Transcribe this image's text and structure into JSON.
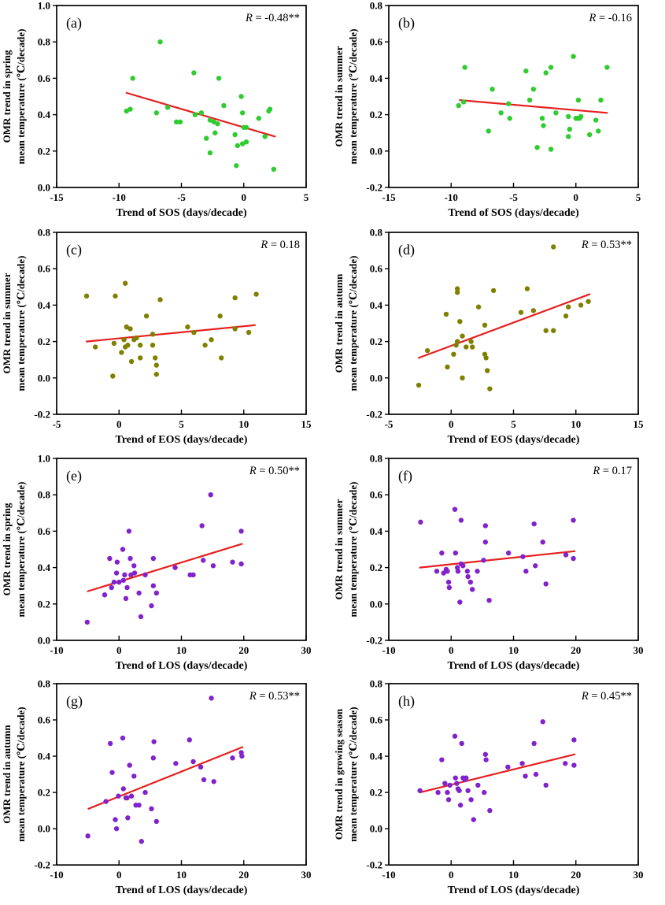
{
  "chart_data": [
    {
      "type": "scatter",
      "panel": "a",
      "r_label": "R = -0.48**",
      "xlabel": "Trend of SOS (days/decade)",
      "ylabel_line1": "OMR trend in spring",
      "ylabel_line2": "mean temperature (℃/decade)",
      "xlim": [
        -15,
        5
      ],
      "ylim": [
        0.0,
        1.0
      ],
      "xticks": [
        "-15",
        "-10",
        "-5",
        "0",
        "5"
      ],
      "yticks": [
        "0.0",
        "0.2",
        "0.4",
        "0.6",
        "0.8",
        "1.0"
      ],
      "point_color": "#2ecc2e",
      "line_color": "#e62020",
      "fit_line": {
        "x1": -9.4,
        "y1": 0.52,
        "x2": 2.5,
        "y2": 0.28
      },
      "points": [
        [
          -9.4,
          0.42
        ],
        [
          -9.1,
          0.43
        ],
        [
          -8.9,
          0.6
        ],
        [
          -7.0,
          0.41
        ],
        [
          -6.7,
          0.8
        ],
        [
          -6.1,
          0.44
        ],
        [
          -5.4,
          0.36
        ],
        [
          -5.1,
          0.36
        ],
        [
          -4.0,
          0.63
        ],
        [
          -3.9,
          0.4
        ],
        [
          -3.4,
          0.41
        ],
        [
          -3.0,
          0.27
        ],
        [
          -2.7,
          0.37
        ],
        [
          -2.7,
          0.19
        ],
        [
          -2.4,
          0.36
        ],
        [
          -2.3,
          0.3
        ],
        [
          -2.1,
          0.35
        ],
        [
          -2.0,
          0.6
        ],
        [
          -1.6,
          0.45
        ],
        [
          -0.7,
          0.29
        ],
        [
          -0.6,
          0.12
        ],
        [
          -0.5,
          0.23
        ],
        [
          -0.2,
          0.5
        ],
        [
          -0.1,
          0.41
        ],
        [
          -0.1,
          0.24
        ],
        [
          0.0,
          0.33
        ],
        [
          0.2,
          0.33
        ],
        [
          0.2,
          0.25
        ],
        [
          1.2,
          0.38
        ],
        [
          1.7,
          0.28
        ],
        [
          2.0,
          0.42
        ],
        [
          2.1,
          0.43
        ],
        [
          2.4,
          0.1
        ]
      ]
    },
    {
      "type": "scatter",
      "panel": "b",
      "r_label": "R = -0.16",
      "xlabel": "Trend of SOS (days/decade)",
      "ylabel_line1": "OMR trend in summer",
      "ylabel_line2": "mean temperature (℃/decade)",
      "xlim": [
        -15,
        5
      ],
      "ylim": [
        -0.2,
        0.8
      ],
      "xticks": [
        "-15",
        "-10",
        "-5",
        "0",
        "5"
      ],
      "yticks": [
        "-0.2",
        "0.0",
        "0.2",
        "0.4",
        "0.6",
        "0.8"
      ],
      "point_color": "#2ecc2e",
      "line_color": "#e62020",
      "fit_line": {
        "x1": -9.3,
        "y1": 0.28,
        "x2": 2.5,
        "y2": 0.21
      },
      "points": [
        [
          -9.4,
          0.25
        ],
        [
          -9.0,
          0.27
        ],
        [
          -8.9,
          0.46
        ],
        [
          -7.0,
          0.11
        ],
        [
          -6.7,
          0.34
        ],
        [
          -6.0,
          0.21
        ],
        [
          -5.4,
          0.26
        ],
        [
          -5.3,
          0.18
        ],
        [
          -4.0,
          0.44
        ],
        [
          -3.7,
          0.28
        ],
        [
          -3.4,
          0.34
        ],
        [
          -3.1,
          0.02
        ],
        [
          -2.7,
          0.18
        ],
        [
          -2.6,
          0.14
        ],
        [
          -2.4,
          0.43
        ],
        [
          -2.0,
          0.46
        ],
        [
          -2.0,
          0.01
        ],
        [
          -1.6,
          0.21
        ],
        [
          -0.6,
          0.19
        ],
        [
          -0.6,
          0.08
        ],
        [
          -0.5,
          0.12
        ],
        [
          -0.2,
          0.52
        ],
        [
          0.0,
          0.18
        ],
        [
          0.1,
          0.18
        ],
        [
          0.2,
          0.28
        ],
        [
          0.3,
          0.18
        ],
        [
          0.4,
          0.19
        ],
        [
          1.1,
          0.09
        ],
        [
          1.6,
          0.17
        ],
        [
          1.8,
          0.11
        ],
        [
          2.0,
          0.28
        ],
        [
          2.5,
          0.46
        ]
      ]
    },
    {
      "type": "scatter",
      "panel": "c",
      "r_label": "R = 0.18",
      "xlabel": "Trend of EOS (days/decade)",
      "ylabel_line1": "OMR trend in summer",
      "ylabel_line2": "mean temperature (℃/decade)",
      "xlim": [
        -5,
        15
      ],
      "ylim": [
        -0.2,
        0.8
      ],
      "xticks": [
        "-5",
        "0",
        "5",
        "10",
        "15"
      ],
      "yticks": [
        "-0.2",
        "0.0",
        "0.2",
        "0.4",
        "0.6",
        "0.8"
      ],
      "point_color": "#808000",
      "line_color": "#e62020",
      "fit_line": {
        "x1": -2.6,
        "y1": 0.2,
        "x2": 10.9,
        "y2": 0.29
      },
      "points": [
        [
          -2.6,
          0.45
        ],
        [
          -1.9,
          0.17
        ],
        [
          -0.5,
          0.01
        ],
        [
          -0.4,
          0.19
        ],
        [
          -0.3,
          0.45
        ],
        [
          0.2,
          0.14
        ],
        [
          0.4,
          0.21
        ],
        [
          0.5,
          0.52
        ],
        [
          0.5,
          0.17
        ],
        [
          0.6,
          0.28
        ],
        [
          0.7,
          0.18
        ],
        [
          0.9,
          0.27
        ],
        [
          1.0,
          0.09
        ],
        [
          1.2,
          0.21
        ],
        [
          1.4,
          0.22
        ],
        [
          1.7,
          0.11
        ],
        [
          1.7,
          0.18
        ],
        [
          2.2,
          0.34
        ],
        [
          2.7,
          0.18
        ],
        [
          2.7,
          0.24
        ],
        [
          2.9,
          0.11
        ],
        [
          3.0,
          0.07
        ],
        [
          3.0,
          0.02
        ],
        [
          3.3,
          0.43
        ],
        [
          5.5,
          0.28
        ],
        [
          6.0,
          0.25
        ],
        [
          6.9,
          0.18
        ],
        [
          7.4,
          0.21
        ],
        [
          8.1,
          0.34
        ],
        [
          8.2,
          0.11
        ],
        [
          9.3,
          0.44
        ],
        [
          9.3,
          0.27
        ],
        [
          10.4,
          0.25
        ],
        [
          11.0,
          0.46
        ]
      ]
    },
    {
      "type": "scatter",
      "panel": "d",
      "r_label": "R = 0.53**",
      "xlabel": "Trend of EOS (days/decade)",
      "ylabel_line1": "OMR trend in autumn",
      "ylabel_line2": "mean temperature (℃/decade)",
      "xlim": [
        -5,
        15
      ],
      "ylim": [
        -0.2,
        0.8
      ],
      "xticks": [
        "-5",
        "0",
        "5",
        "10",
        "15"
      ],
      "yticks": [
        "-0.2",
        "0.0",
        "0.2",
        "0.4",
        "0.6",
        "0.8"
      ],
      "point_color": "#808000",
      "line_color": "#e62020",
      "fit_line": {
        "x1": -2.6,
        "y1": 0.11,
        "x2": 11.1,
        "y2": 0.46
      },
      "points": [
        [
          -2.6,
          -0.04
        ],
        [
          -1.9,
          0.15
        ],
        [
          -0.4,
          0.35
        ],
        [
          -0.3,
          0.06
        ],
        [
          0.2,
          0.13
        ],
        [
          0.4,
          0.18
        ],
        [
          0.5,
          0.49
        ],
        [
          0.5,
          0.47
        ],
        [
          0.5,
          0.2
        ],
        [
          0.7,
          0.31
        ],
        [
          0.9,
          0.23
        ],
        [
          0.9,
          0.0
        ],
        [
          1.2,
          0.17
        ],
        [
          1.6,
          0.2
        ],
        [
          1.7,
          0.17
        ],
        [
          2.2,
          0.39
        ],
        [
          2.7,
          0.29
        ],
        [
          2.7,
          0.13
        ],
        [
          2.8,
          0.11
        ],
        [
          2.9,
          0.04
        ],
        [
          3.1,
          -0.06
        ],
        [
          3.4,
          0.48
        ],
        [
          5.6,
          0.36
        ],
        [
          6.1,
          0.49
        ],
        [
          6.6,
          0.37
        ],
        [
          7.6,
          0.26
        ],
        [
          8.2,
          0.72
        ],
        [
          8.2,
          0.26
        ],
        [
          9.2,
          0.34
        ],
        [
          9.4,
          0.39
        ],
        [
          10.4,
          0.4
        ],
        [
          11.0,
          0.42
        ]
      ]
    },
    {
      "type": "scatter",
      "panel": "e",
      "r_label": "R = 0.50**",
      "xlabel": "Trend of LOS (days/decade)",
      "ylabel_line1": "OMR trend in spring",
      "ylabel_line2": "mean temperature (℃/decade)",
      "xlim": [
        -10,
        30
      ],
      "ylim": [
        0.0,
        1.0
      ],
      "xticks": [
        "-10",
        "0",
        "10",
        "20",
        "30"
      ],
      "yticks": [
        "0.0",
        "0.2",
        "0.4",
        "0.6",
        "0.8",
        "1.0"
      ],
      "point_color": "#8222cc",
      "line_color": "#e62020",
      "fit_line": {
        "x1": -5.0,
        "y1": 0.27,
        "x2": 19.7,
        "y2": 0.53
      },
      "points": [
        [
          -5.1,
          0.1
        ],
        [
          -2.3,
          0.25
        ],
        [
          -1.5,
          0.45
        ],
        [
          -1.2,
          0.29
        ],
        [
          -0.8,
          0.32
        ],
        [
          -0.4,
          0.37
        ],
        [
          -0.3,
          0.43
        ],
        [
          0.0,
          0.32
        ],
        [
          0.6,
          0.5
        ],
        [
          0.7,
          0.33
        ],
        [
          0.9,
          0.36
        ],
        [
          1.1,
          0.23
        ],
        [
          1.3,
          0.29
        ],
        [
          1.6,
          0.6
        ],
        [
          1.8,
          0.45
        ],
        [
          1.9,
          0.36
        ],
        [
          2.4,
          0.41
        ],
        [
          2.5,
          0.37
        ],
        [
          3.2,
          0.26
        ],
        [
          3.5,
          0.13
        ],
        [
          4.2,
          0.36
        ],
        [
          5.2,
          0.19
        ],
        [
          5.5,
          0.3
        ],
        [
          5.5,
          0.45
        ],
        [
          6.0,
          0.26
        ],
        [
          9.0,
          0.4
        ],
        [
          11.4,
          0.36
        ],
        [
          11.9,
          0.36
        ],
        [
          13.3,
          0.63
        ],
        [
          13.5,
          0.44
        ],
        [
          14.7,
          0.8
        ],
        [
          15.1,
          0.41
        ],
        [
          18.2,
          0.43
        ],
        [
          19.6,
          0.6
        ],
        [
          19.6,
          0.42
        ]
      ]
    },
    {
      "type": "scatter",
      "panel": "f",
      "r_label": "R = 0.17",
      "xlabel": "Trend of LOS (days/decade)",
      "ylabel_line1": "OMR trend in summer",
      "ylabel_line2": "mean temperature (℃/decade)",
      "xlim": [
        -10,
        30
      ],
      "ylim": [
        -0.2,
        0.8
      ],
      "xticks": [
        "-10",
        "0",
        "10",
        "20",
        "30"
      ],
      "yticks": [
        "-0.2",
        "0.0",
        "0.2",
        "0.4",
        "0.6",
        "0.8"
      ],
      "point_color": "#8222cc",
      "line_color": "#e62020",
      "fit_line": {
        "x1": -5.0,
        "y1": 0.2,
        "x2": 19.8,
        "y2": 0.29
      },
      "points": [
        [
          -4.9,
          0.45
        ],
        [
          -2.3,
          0.18
        ],
        [
          -1.5,
          0.28
        ],
        [
          -1.2,
          0.17
        ],
        [
          -0.8,
          0.19
        ],
        [
          -0.6,
          0.18
        ],
        [
          -0.4,
          0.12
        ],
        [
          -0.3,
          0.09
        ],
        [
          0.6,
          0.52
        ],
        [
          0.7,
          0.28
        ],
        [
          1.0,
          0.2
        ],
        [
          1.1,
          0.18
        ],
        [
          1.4,
          0.01
        ],
        [
          1.6,
          0.46
        ],
        [
          1.6,
          0.22
        ],
        [
          1.9,
          0.21
        ],
        [
          2.6,
          0.18
        ],
        [
          2.7,
          0.15
        ],
        [
          3.1,
          0.12
        ],
        [
          3.4,
          0.08
        ],
        [
          4.2,
          0.18
        ],
        [
          5.2,
          0.24
        ],
        [
          5.5,
          0.43
        ],
        [
          5.5,
          0.34
        ],
        [
          6.1,
          0.02
        ],
        [
          9.2,
          0.28
        ],
        [
          11.5,
          0.26
        ],
        [
          12.0,
          0.18
        ],
        [
          13.3,
          0.44
        ],
        [
          13.5,
          0.21
        ],
        [
          14.7,
          0.34
        ],
        [
          15.2,
          0.11
        ],
        [
          18.4,
          0.27
        ],
        [
          19.6,
          0.46
        ],
        [
          19.6,
          0.25
        ]
      ]
    },
    {
      "type": "scatter",
      "panel": "g",
      "r_label": "R = 0.53**",
      "xlabel": "Trend of LOS (days/decade)",
      "ylabel_line1": "OMR trend in autumn",
      "ylabel_line2": "mean temperature (℃/decade)",
      "xlim": [
        -10,
        30
      ],
      "ylim": [
        -0.2,
        0.8
      ],
      "xticks": [
        "-10",
        "0",
        "10",
        "20",
        "30"
      ],
      "yticks": [
        "-0.2",
        "0.0",
        "0.2",
        "0.4",
        "0.6",
        "0.8"
      ],
      "point_color": "#8222cc",
      "line_color": "#e62020",
      "fit_line": {
        "x1": -4.9,
        "y1": 0.11,
        "x2": 19.8,
        "y2": 0.45
      },
      "points": [
        [
          -5.0,
          -0.04
        ],
        [
          -2.1,
          0.15
        ],
        [
          -1.4,
          0.47
        ],
        [
          -1.1,
          0.31
        ],
        [
          -0.6,
          0.05
        ],
        [
          -0.4,
          0.0
        ],
        [
          -0.1,
          0.18
        ],
        [
          0.6,
          0.5
        ],
        [
          0.7,
          0.22
        ],
        [
          1.1,
          0.17
        ],
        [
          1.3,
          0.17
        ],
        [
          1.4,
          0.06
        ],
        [
          1.7,
          0.35
        ],
        [
          2.0,
          0.18
        ],
        [
          2.4,
          0.29
        ],
        [
          2.7,
          0.13
        ],
        [
          3.2,
          0.13
        ],
        [
          3.6,
          -0.07
        ],
        [
          4.2,
          0.2
        ],
        [
          5.2,
          0.11
        ],
        [
          5.5,
          0.39
        ],
        [
          5.6,
          0.48
        ],
        [
          6.0,
          0.04
        ],
        [
          9.1,
          0.36
        ],
        [
          11.3,
          0.49
        ],
        [
          11.9,
          0.37
        ],
        [
          13.1,
          0.34
        ],
        [
          13.6,
          0.27
        ],
        [
          14.8,
          0.72
        ],
        [
          15.2,
          0.26
        ],
        [
          18.2,
          0.39
        ],
        [
          19.6,
          0.42
        ],
        [
          19.7,
          0.4
        ]
      ]
    },
    {
      "type": "scatter",
      "panel": "h",
      "r_label": "R = 0.45**",
      "xlabel": "Trend of LOS (days/decade)",
      "ylabel_line1": "OMR trend in growing season",
      "ylabel_line2": "mean temperature (℃/decade)",
      "xlim": [
        -10,
        30
      ],
      "ylim": [
        -0.2,
        0.8
      ],
      "xticks": [
        "-10",
        "0",
        "10",
        "20",
        "30"
      ],
      "yticks": [
        "-0.2",
        "0.0",
        "0.2",
        "0.4",
        "0.6",
        "0.8"
      ],
      "point_color": "#8222cc",
      "line_color": "#e62020",
      "fit_line": {
        "x1": -5.0,
        "y1": 0.2,
        "x2": 19.8,
        "y2": 0.41
      },
      "points": [
        [
          -5.0,
          0.21
        ],
        [
          -2.1,
          0.2
        ],
        [
          -1.5,
          0.38
        ],
        [
          -1.0,
          0.25
        ],
        [
          -0.6,
          0.2
        ],
        [
          -0.4,
          0.16
        ],
        [
          -0.2,
          0.24
        ],
        [
          0.6,
          0.51
        ],
        [
          0.7,
          0.28
        ],
        [
          0.9,
          0.25
        ],
        [
          1.1,
          0.22
        ],
        [
          1.3,
          0.21
        ],
        [
          1.5,
          0.13
        ],
        [
          1.7,
          0.47
        ],
        [
          1.9,
          0.28
        ],
        [
          2.2,
          0.27
        ],
        [
          2.4,
          0.28
        ],
        [
          2.7,
          0.21
        ],
        [
          3.2,
          0.16
        ],
        [
          3.6,
          0.05
        ],
        [
          4.3,
          0.24
        ],
        [
          5.3,
          0.2
        ],
        [
          5.5,
          0.41
        ],
        [
          5.6,
          0.38
        ],
        [
          6.2,
          0.1
        ],
        [
          9.1,
          0.34
        ],
        [
          11.4,
          0.36
        ],
        [
          11.9,
          0.29
        ],
        [
          13.3,
          0.47
        ],
        [
          13.6,
          0.3
        ],
        [
          14.7,
          0.59
        ],
        [
          15.2,
          0.24
        ],
        [
          18.3,
          0.36
        ],
        [
          19.7,
          0.49
        ],
        [
          19.7,
          0.35
        ]
      ]
    }
  ]
}
